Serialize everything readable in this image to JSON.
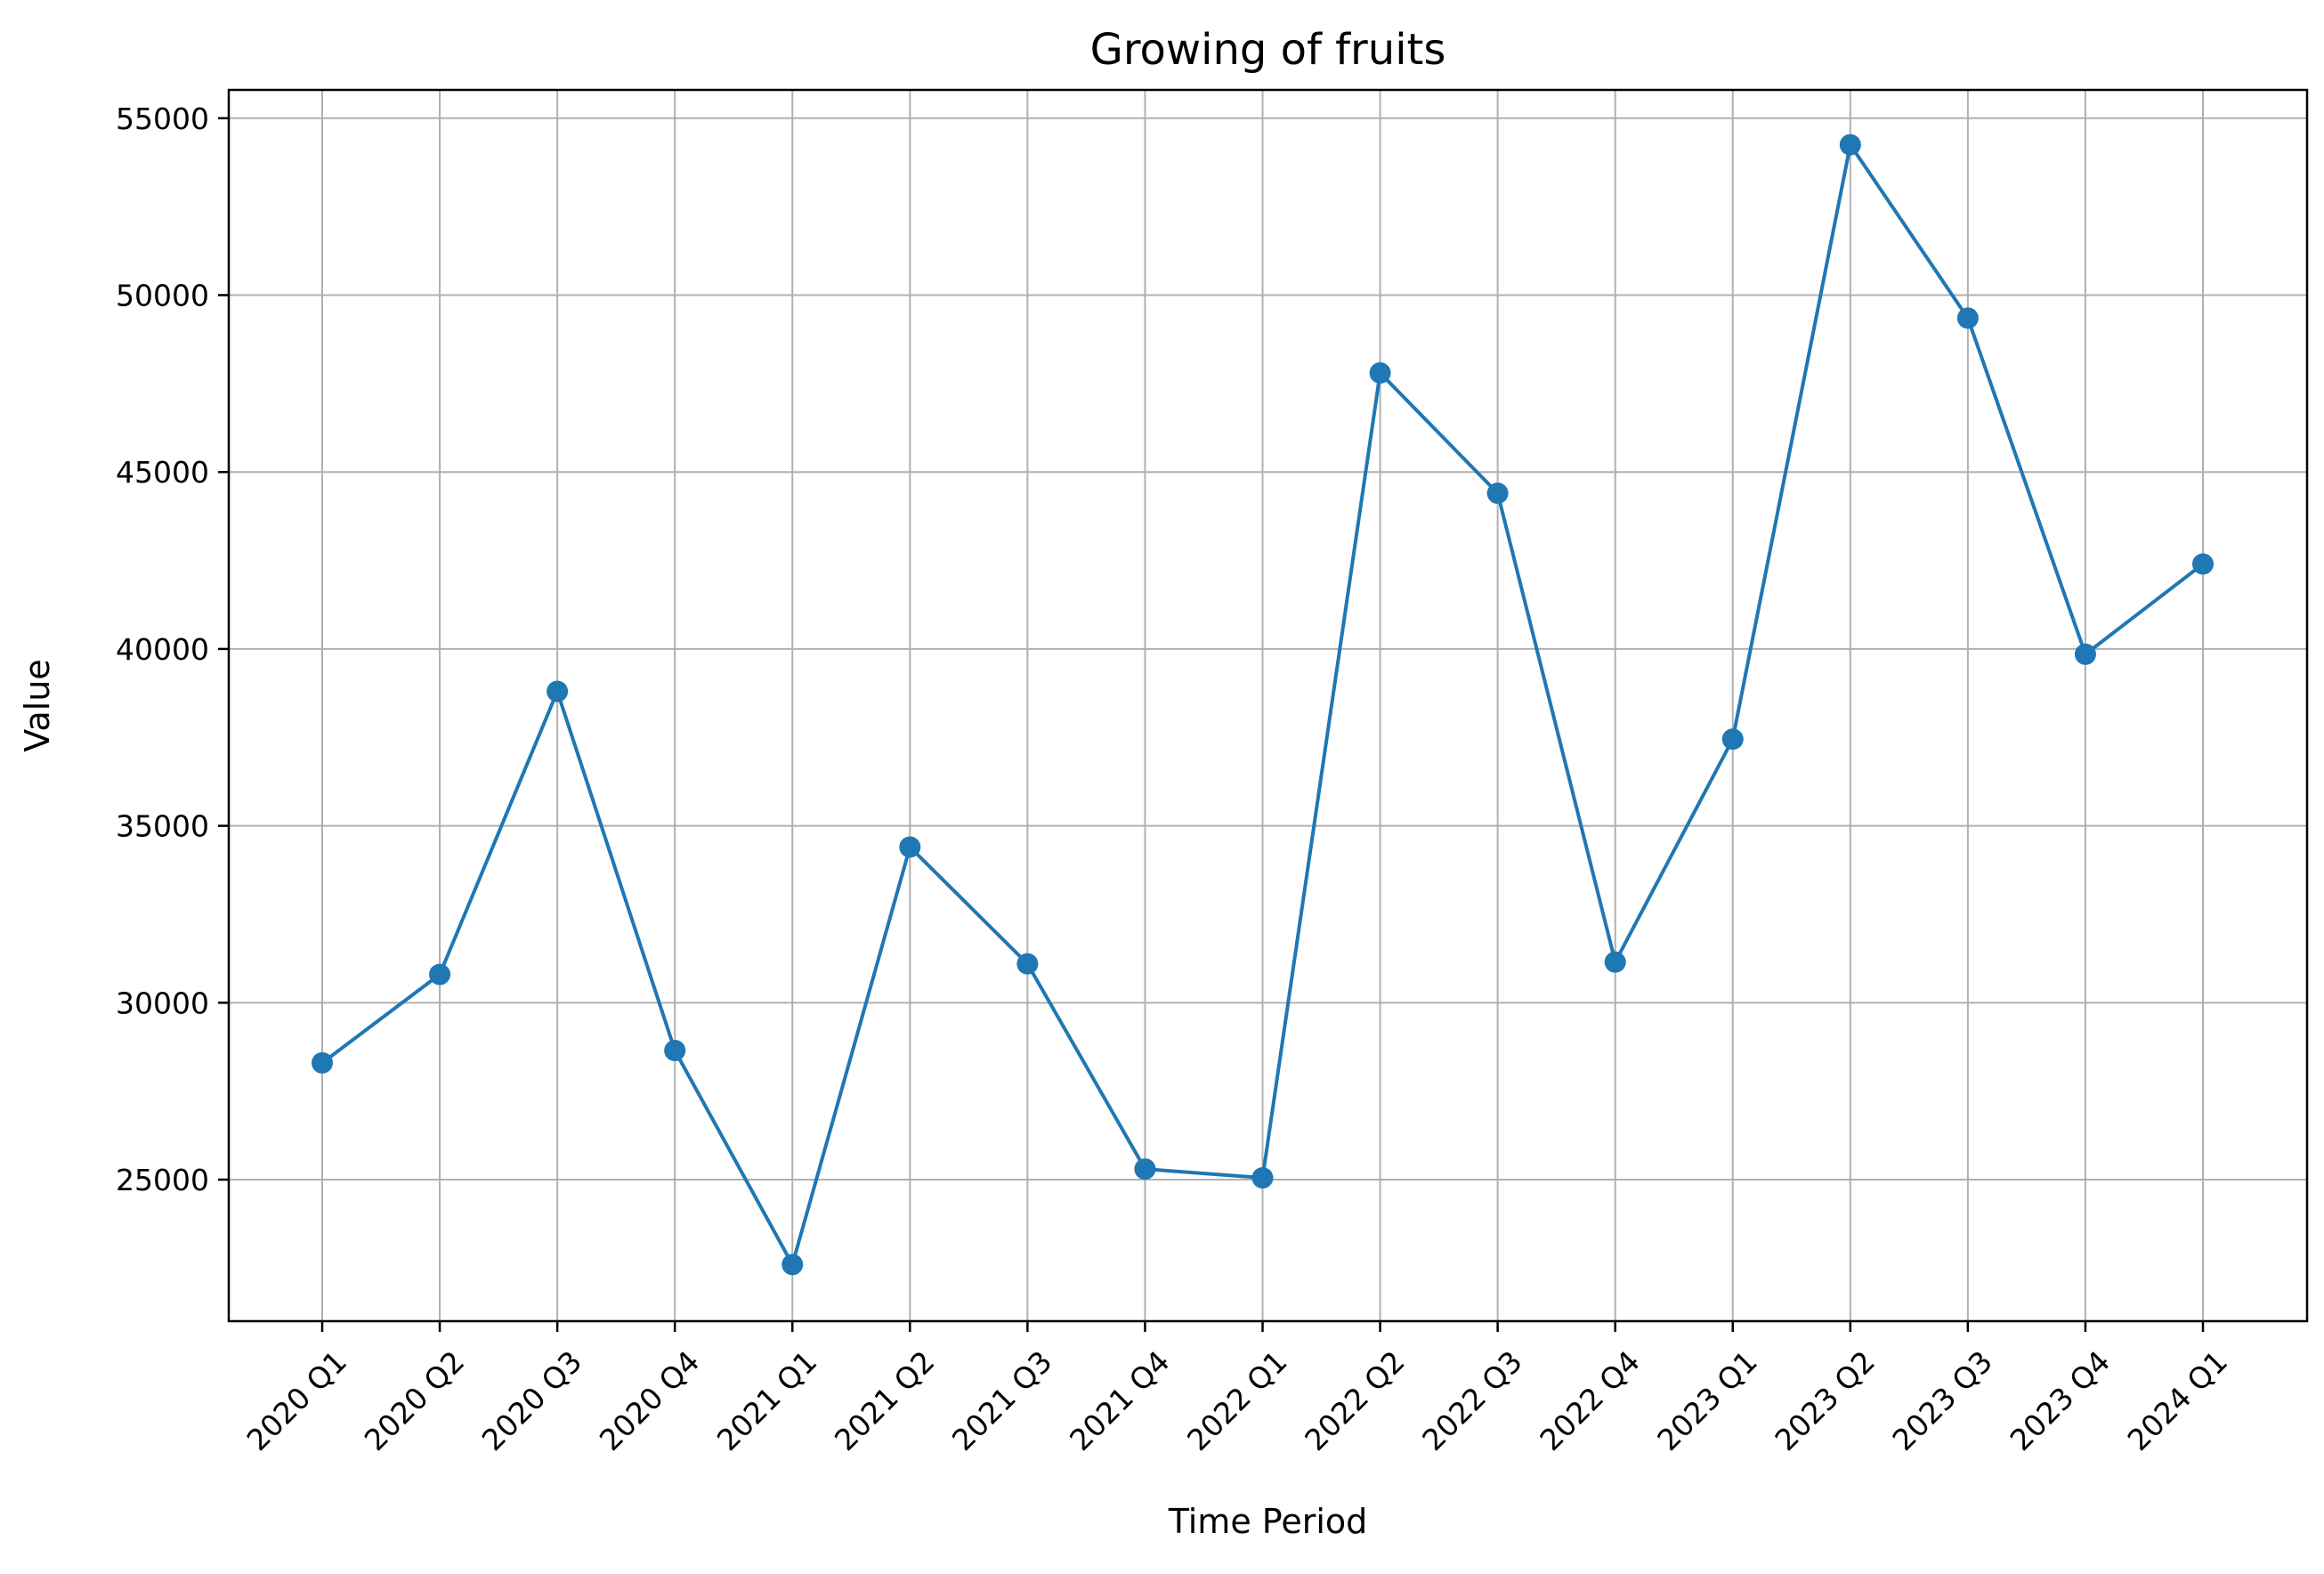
{
  "chart_data": {
    "type": "line",
    "title": "Growing of fruits",
    "xlabel": "Time Period",
    "ylabel": "Value",
    "categories": [
      "2020 Q1",
      "2020 Q2",
      "2020 Q3",
      "2020 Q4",
      "2021 Q1",
      "2021 Q2",
      "2021 Q3",
      "2021 Q4",
      "2022 Q1",
      "2022 Q2",
      "2022 Q3",
      "2022 Q4",
      "2023 Q1",
      "2023 Q2",
      "2023 Q3",
      "2023 Q4",
      "2024 Q1"
    ],
    "series": [
      {
        "values": [
          28300,
          30800,
          38800,
          28650,
          22600,
          34400,
          31100,
          25300,
          25050,
          47800,
          44400,
          31150,
          37450,
          54250,
          49350,
          39850,
          42400
        ],
        "color": "#1f77b4",
        "marker": "circle"
      }
    ],
    "ylim": [
      21000,
      55800
    ],
    "yticks": [
      25000,
      30000,
      35000,
      40000,
      45000,
      50000,
      55000
    ],
    "ytick_labels": [
      "25000",
      "30000",
      "35000",
      "40000",
      "45000",
      "50000",
      "55000"
    ],
    "grid": true,
    "legend": "none"
  }
}
